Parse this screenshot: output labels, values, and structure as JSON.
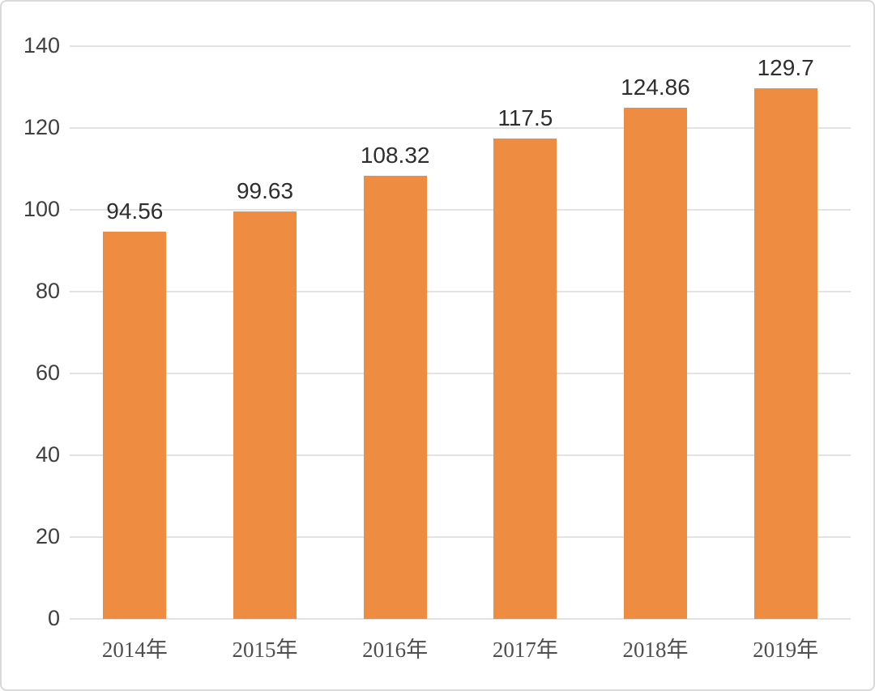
{
  "chart_data": {
    "type": "bar",
    "title": "",
    "xlabel": "",
    "ylabel": "",
    "categories": [
      "2014年",
      "2015年",
      "2016年",
      "2017年",
      "2018年",
      "2019年"
    ],
    "values": [
      94.56,
      99.63,
      108.32,
      117.5,
      124.86,
      129.7
    ],
    "data_labels": [
      "94.56",
      "99.63",
      "108.32",
      "117.5",
      "124.86",
      "129.7"
    ],
    "ylim": [
      0,
      140
    ],
    "yticks": [
      0,
      20,
      40,
      60,
      80,
      100,
      120,
      140
    ],
    "grid": true,
    "legend": false,
    "colors": {
      "bar": "#ee8c42",
      "gridline": "#e2e2e2",
      "axis_text": "#3f3f3f",
      "category_text": "#4f4f4f",
      "value_text": "#2e2e2e",
      "frame_border": "#d9d9d9",
      "background": "#ffffff"
    }
  }
}
